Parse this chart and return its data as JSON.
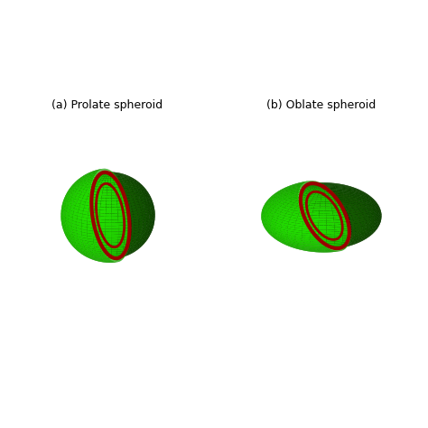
{
  "title_left": "(a) Prolate spheroid",
  "title_right": "(b) Oblate spheroid",
  "bg_color": "#ffffff",
  "green_bright": "#22dd00",
  "green_dark": "#156600",
  "green_mid": "#119900",
  "red_ring": "#990000",
  "fig_width": 4.74,
  "fig_height": 4.74,
  "dpi": 100,
  "elev": 18,
  "azim_prolate": -115,
  "azim_oblate": -115
}
